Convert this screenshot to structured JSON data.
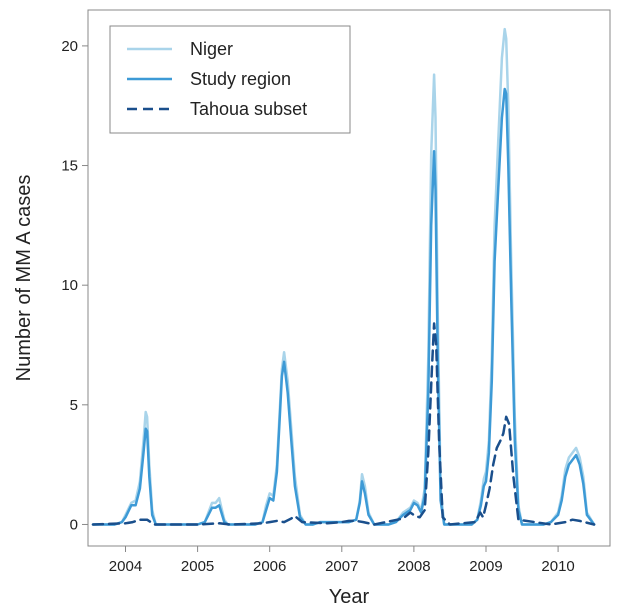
{
  "chart_data": {
    "type": "line",
    "title": "",
    "xlabel": "Year",
    "ylabel": "Number of MM A cases",
    "xlim": [
      2003.48,
      2010.72
    ],
    "ylim": [
      -0.9,
      21.5
    ],
    "x_ticks": [
      2004,
      2005,
      2006,
      2007,
      2008,
      2009,
      2010
    ],
    "y_ticks": [
      0,
      5,
      10,
      15,
      20
    ],
    "grid": false,
    "legend_position": "top-left",
    "series": [
      {
        "name": "Niger",
        "color": "#a9d4ea",
        "dash": "solid",
        "x": [
          2003.55,
          2003.7,
          2003.85,
          2003.95,
          2004.0,
          2004.08,
          2004.14,
          2004.2,
          2004.25,
          2004.28,
          2004.3,
          2004.33,
          2004.37,
          2004.42,
          2004.5,
          2004.6,
          2004.8,
          2005.0,
          2005.1,
          2005.15,
          2005.2,
          2005.25,
          2005.3,
          2005.33,
          2005.37,
          2005.42,
          2005.5,
          2005.6,
          2005.8,
          2005.9,
          2005.95,
          2006.0,
          2006.05,
          2006.1,
          2006.14,
          2006.17,
          2006.2,
          2006.25,
          2006.3,
          2006.35,
          2006.42,
          2006.5,
          2006.6,
          2006.7,
          2006.8,
          2006.9,
          2007.0,
          2007.1,
          2007.2,
          2007.25,
          2007.28,
          2007.32,
          2007.37,
          2007.45,
          2007.55,
          2007.65,
          2007.75,
          2007.85,
          2007.95,
          2008.0,
          2008.05,
          2008.1,
          2008.15,
          2008.2,
          2008.24,
          2008.28,
          2008.3,
          2008.33,
          2008.37,
          2008.42,
          2008.5,
          2008.6,
          2008.7,
          2008.8,
          2008.88,
          2008.93,
          2008.97,
          2009.0,
          2009.04,
          2009.08,
          2009.12,
          2009.17,
          2009.22,
          2009.26,
          2009.28,
          2009.31,
          2009.35,
          2009.4,
          2009.45,
          2009.5,
          2009.6,
          2009.7,
          2009.8,
          2009.9,
          2010.0,
          2010.05,
          2010.1,
          2010.15,
          2010.2,
          2010.25,
          2010.3,
          2010.35,
          2010.4,
          2010.5
        ],
        "y": [
          0.0,
          0.0,
          0.0,
          0.1,
          0.4,
          0.9,
          1.0,
          1.8,
          3.5,
          4.7,
          4.5,
          2.5,
          0.6,
          0.0,
          0.0,
          0.0,
          0.0,
          0.0,
          0.1,
          0.5,
          0.9,
          0.9,
          1.1,
          0.7,
          0.2,
          0.0,
          0.0,
          0.0,
          0.0,
          0.1,
          0.8,
          1.3,
          1.2,
          2.5,
          4.8,
          6.5,
          7.2,
          6.0,
          4.0,
          2.0,
          0.4,
          0.0,
          0.0,
          0.1,
          0.1,
          0.1,
          0.1,
          0.1,
          0.2,
          1.0,
          2.1,
          1.6,
          0.5,
          0.0,
          0.0,
          0.0,
          0.1,
          0.5,
          0.7,
          1.0,
          0.9,
          0.6,
          1.5,
          7.0,
          15.5,
          18.8,
          17.0,
          9.0,
          1.5,
          0.0,
          0.0,
          0.0,
          0.0,
          0.0,
          0.2,
          1.0,
          1.9,
          2.2,
          3.5,
          7.0,
          12.5,
          16.0,
          19.5,
          20.7,
          20.3,
          17.5,
          11.0,
          4.5,
          0.8,
          0.0,
          0.0,
          0.0,
          0.0,
          0.1,
          0.5,
          1.2,
          2.3,
          2.8,
          3.0,
          3.2,
          2.8,
          2.0,
          0.5,
          0.0
        ]
      },
      {
        "name": "Study region",
        "color": "#3d9ad6",
        "dash": "solid",
        "x": [
          2003.55,
          2003.7,
          2003.85,
          2003.95,
          2004.0,
          2004.08,
          2004.14,
          2004.2,
          2004.25,
          2004.28,
          2004.3,
          2004.33,
          2004.37,
          2004.42,
          2004.5,
          2004.6,
          2004.8,
          2005.0,
          2005.1,
          2005.15,
          2005.2,
          2005.25,
          2005.3,
          2005.33,
          2005.37,
          2005.42,
          2005.5,
          2005.6,
          2005.8,
          2005.9,
          2005.95,
          2006.0,
          2006.05,
          2006.1,
          2006.14,
          2006.17,
          2006.2,
          2006.25,
          2006.3,
          2006.35,
          2006.42,
          2006.5,
          2006.6,
          2006.7,
          2006.8,
          2006.9,
          2007.0,
          2007.1,
          2007.2,
          2007.25,
          2007.28,
          2007.32,
          2007.37,
          2007.45,
          2007.55,
          2007.65,
          2007.75,
          2007.85,
          2007.95,
          2008.0,
          2008.05,
          2008.1,
          2008.15,
          2008.2,
          2008.24,
          2008.28,
          2008.3,
          2008.33,
          2008.37,
          2008.42,
          2008.5,
          2008.6,
          2008.7,
          2008.8,
          2008.88,
          2008.93,
          2008.97,
          2009.0,
          2009.04,
          2009.08,
          2009.12,
          2009.17,
          2009.22,
          2009.26,
          2009.28,
          2009.31,
          2009.35,
          2009.4,
          2009.45,
          2009.5,
          2009.6,
          2009.7,
          2009.8,
          2009.9,
          2010.0,
          2010.05,
          2010.1,
          2010.15,
          2010.2,
          2010.25,
          2010.3,
          2010.35,
          2010.4,
          2010.5
        ],
        "y": [
          0.0,
          0.0,
          0.0,
          0.1,
          0.3,
          0.8,
          0.8,
          1.5,
          3.0,
          4.0,
          3.9,
          2.0,
          0.4,
          0.0,
          0.0,
          0.0,
          0.0,
          0.0,
          0.1,
          0.4,
          0.7,
          0.7,
          0.8,
          0.5,
          0.1,
          0.0,
          0.0,
          0.0,
          0.0,
          0.1,
          0.6,
          1.1,
          1.0,
          2.2,
          4.5,
          6.2,
          6.8,
          5.5,
          3.5,
          1.6,
          0.3,
          0.0,
          0.0,
          0.1,
          0.1,
          0.1,
          0.1,
          0.1,
          0.2,
          0.9,
          1.8,
          1.3,
          0.4,
          0.0,
          0.0,
          0.0,
          0.1,
          0.4,
          0.6,
          0.9,
          0.8,
          0.5,
          1.2,
          5.5,
          12.5,
          15.6,
          14.0,
          7.0,
          1.0,
          0.0,
          0.0,
          0.0,
          0.0,
          0.0,
          0.2,
          0.8,
          1.6,
          1.8,
          3.0,
          6.0,
          11.0,
          14.0,
          17.0,
          18.2,
          18.0,
          15.0,
          9.5,
          3.5,
          0.6,
          0.0,
          0.0,
          0.0,
          0.0,
          0.1,
          0.4,
          1.0,
          2.0,
          2.5,
          2.7,
          2.9,
          2.5,
          1.7,
          0.4,
          0.0
        ]
      },
      {
        "name": "Tahoua subset",
        "color": "#1a4f8c",
        "dash": "dashed",
        "x": [
          2003.55,
          2004.0,
          2004.1,
          2004.2,
          2004.3,
          2004.4,
          2005.0,
          2005.3,
          2005.45,
          2005.9,
          2006.0,
          2006.1,
          2006.2,
          2006.3,
          2006.35,
          2006.45,
          2006.8,
          2007.0,
          2007.1,
          2007.2,
          2007.3,
          2007.45,
          2007.85,
          2007.95,
          2008.02,
          2008.08,
          2008.15,
          2008.2,
          2008.25,
          2008.28,
          2008.31,
          2008.35,
          2008.4,
          2008.5,
          2008.85,
          2008.92,
          2008.96,
          2009.0,
          2009.05,
          2009.1,
          2009.15,
          2009.2,
          2009.24,
          2009.28,
          2009.32,
          2009.38,
          2009.45,
          2009.9,
          2010.1,
          2010.2,
          2010.3,
          2010.5
        ],
        "y": [
          0.0,
          0.05,
          0.1,
          0.2,
          0.2,
          0.0,
          0.0,
          0.05,
          0.0,
          0.05,
          0.1,
          0.15,
          0.1,
          0.25,
          0.35,
          0.1,
          0.05,
          0.1,
          0.15,
          0.15,
          0.1,
          0.0,
          0.25,
          0.5,
          0.35,
          0.3,
          0.6,
          3.0,
          6.5,
          8.4,
          7.5,
          3.5,
          0.3,
          0.0,
          0.1,
          0.5,
          0.3,
          0.8,
          1.5,
          2.5,
          3.2,
          3.5,
          3.8,
          4.5,
          4.2,
          2.0,
          0.2,
          0.0,
          0.1,
          0.2,
          0.15,
          0.0
        ]
      }
    ]
  }
}
